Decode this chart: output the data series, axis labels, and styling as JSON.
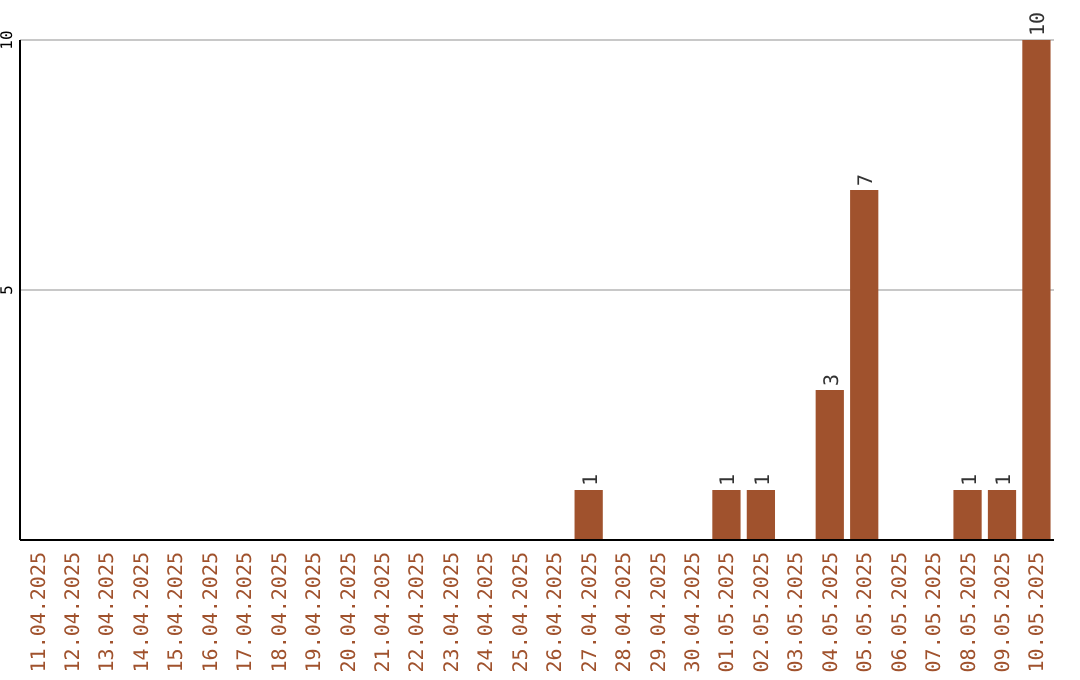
{
  "chart_data": {
    "type": "bar",
    "categories": [
      "11.04.2025",
      "12.04.2025",
      "13.04.2025",
      "14.04.2025",
      "15.04.2025",
      "16.04.2025",
      "17.04.2025",
      "18.04.2025",
      "19.04.2025",
      "20.04.2025",
      "21.04.2025",
      "22.04.2025",
      "23.04.2025",
      "24.04.2025",
      "25.04.2025",
      "26.04.2025",
      "27.04.2025",
      "28.04.2025",
      "29.04.2025",
      "30.04.2025",
      "01.05.2025",
      "02.05.2025",
      "03.05.2025",
      "04.05.2025",
      "05.05.2025",
      "06.05.2025",
      "07.05.2025",
      "08.05.2025",
      "09.05.2025",
      "10.05.2025"
    ],
    "values": [
      0,
      0,
      0,
      0,
      0,
      0,
      0,
      0,
      0,
      0,
      0,
      0,
      0,
      0,
      0,
      0,
      1,
      0,
      0,
      0,
      1,
      1,
      0,
      3,
      7,
      0,
      0,
      1,
      1,
      10
    ],
    "value_labels": [
      null,
      null,
      null,
      null,
      null,
      null,
      null,
      null,
      null,
      null,
      null,
      null,
      null,
      null,
      null,
      null,
      "1",
      null,
      null,
      null,
      "1",
      "1",
      null,
      "3",
      "7",
      null,
      null,
      "1",
      "1",
      "10"
    ],
    "color": "#a0522d",
    "ylim": [
      0,
      10
    ],
    "yticks": [
      5,
      10
    ],
    "grid": "y"
  }
}
